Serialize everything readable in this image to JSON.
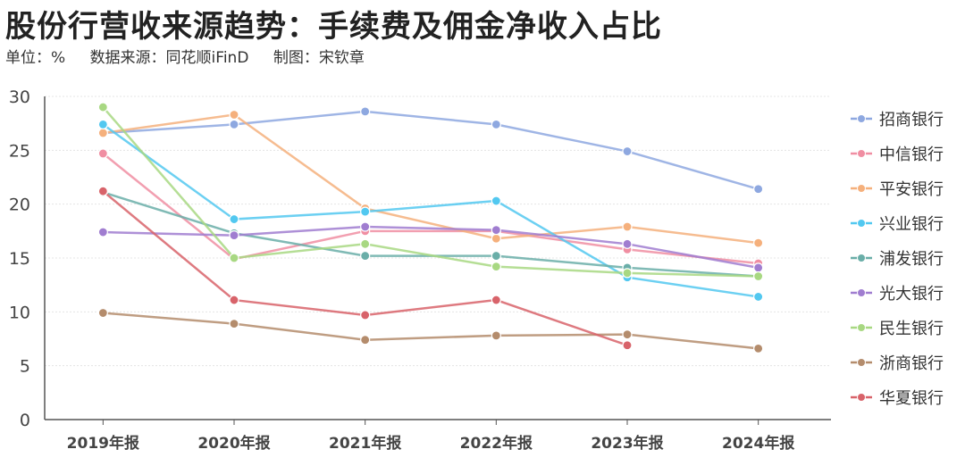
{
  "title": "股份行营收来源趋势：手续费及佣金净收入占比",
  "subtitle": {
    "unit": "单位：%",
    "source": "数据来源：同花顺iFinD",
    "author": "制图：宋钦章"
  },
  "chart_data": {
    "type": "line",
    "title": "股份行营收来源趋势：手续费及佣金净收入占比",
    "xlabel": "",
    "ylabel": "%",
    "ylim": [
      0,
      30
    ],
    "yticks": [
      0,
      5,
      10,
      15,
      20,
      25,
      30
    ],
    "grid": true,
    "legend": "right",
    "categories": [
      "2019年报",
      "2020年报",
      "2021年报",
      "2022年报",
      "2023年报",
      "2024年报"
    ],
    "series": [
      {
        "name": "招商银行",
        "color": "#8ea8e0",
        "values": [
          26.6,
          27.4,
          28.6,
          27.4,
          24.9,
          21.4
        ]
      },
      {
        "name": "中信银行",
        "color": "#f08ea2",
        "values": [
          24.7,
          14.9,
          17.5,
          17.5,
          15.8,
          14.5
        ]
      },
      {
        "name": "平安银行",
        "color": "#f5b07c",
        "values": [
          26.6,
          28.3,
          19.6,
          16.8,
          17.9,
          16.4
        ]
      },
      {
        "name": "兴业银行",
        "color": "#52c8f0",
        "values": [
          27.4,
          18.6,
          19.3,
          20.3,
          13.2,
          11.4
        ]
      },
      {
        "name": "浦发银行",
        "color": "#6aaea8",
        "values": [
          21.1,
          17.3,
          15.2,
          15.2,
          14.1,
          13.3
        ]
      },
      {
        "name": "光大银行",
        "color": "#a07dd0",
        "values": [
          17.4,
          17.1,
          17.9,
          17.6,
          16.3,
          14.1
        ]
      },
      {
        "name": "民生银行",
        "color": "#a8d882",
        "values": [
          29.0,
          15.0,
          16.3,
          14.2,
          13.6,
          13.3
        ]
      },
      {
        "name": "浙商银行",
        "color": "#b48c6c",
        "values": [
          9.9,
          8.9,
          7.4,
          7.8,
          7.9,
          6.6
        ]
      },
      {
        "name": "华夏银行",
        "color": "#d8636a",
        "values": [
          21.2,
          11.1,
          9.7,
          11.1,
          6.9,
          null
        ]
      }
    ]
  }
}
